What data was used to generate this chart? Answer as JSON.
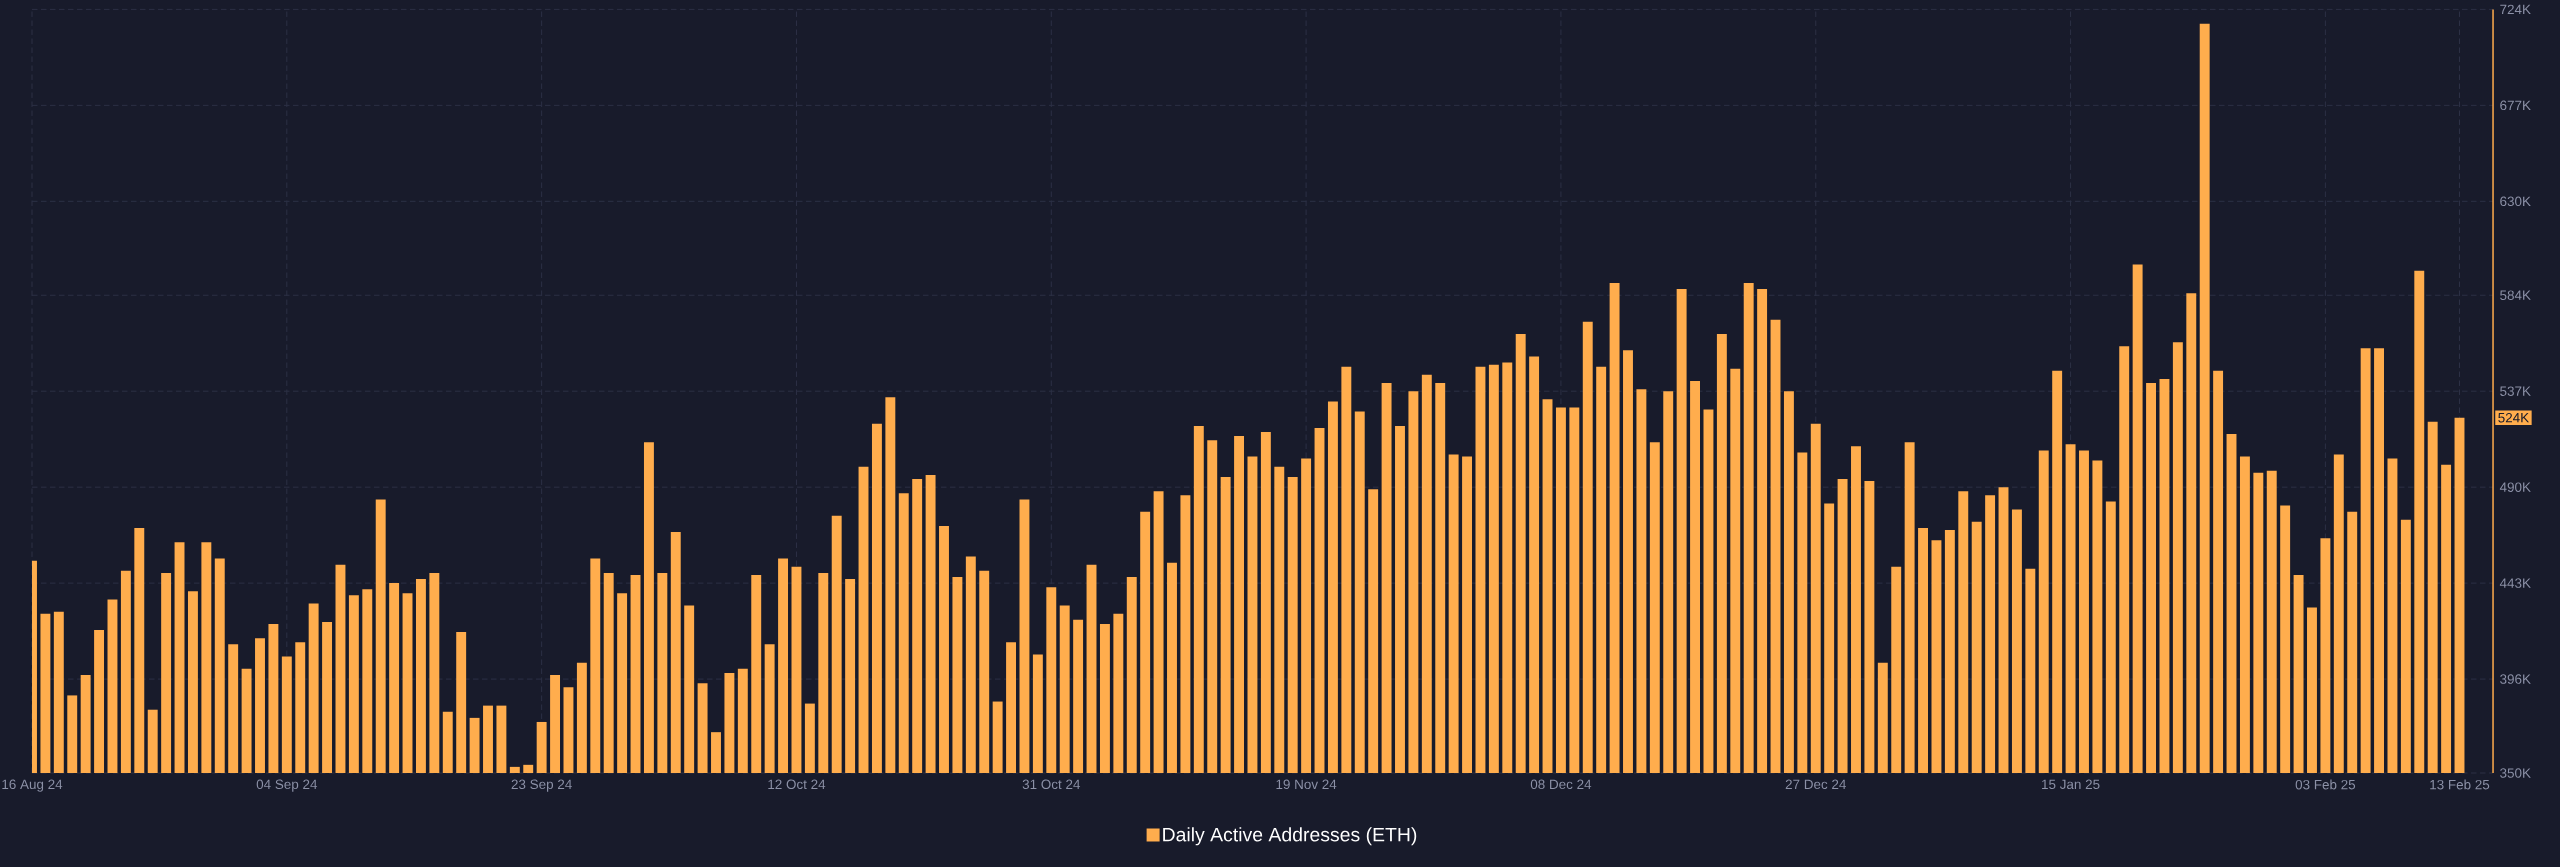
{
  "chart_data": {
    "type": "bar",
    "x": [
      "2024-08-16",
      "2024-08-17",
      "2024-08-18",
      "2024-08-19",
      "2024-08-20",
      "2024-08-21",
      "2024-08-22",
      "2024-08-23",
      "2024-08-24",
      "2024-08-25",
      "2024-08-26",
      "2024-08-27",
      "2024-08-28",
      "2024-08-29",
      "2024-08-30",
      "2024-08-31",
      "2024-09-01",
      "2024-09-02",
      "2024-09-03",
      "2024-09-04",
      "2024-09-05",
      "2024-09-06",
      "2024-09-07",
      "2024-09-08",
      "2024-09-09",
      "2024-09-10",
      "2024-09-11",
      "2024-09-12",
      "2024-09-13",
      "2024-09-14",
      "2024-09-15",
      "2024-09-16",
      "2024-09-17",
      "2024-09-18",
      "2024-09-19",
      "2024-09-20",
      "2024-09-21",
      "2024-09-22",
      "2024-09-23",
      "2024-09-24",
      "2024-09-25",
      "2024-09-26",
      "2024-09-27",
      "2024-09-28",
      "2024-09-29",
      "2024-09-30",
      "2024-10-01",
      "2024-10-02",
      "2024-10-03",
      "2024-10-04",
      "2024-10-05",
      "2024-10-06",
      "2024-10-07",
      "2024-10-08",
      "2024-10-09",
      "2024-10-10",
      "2024-10-11",
      "2024-10-12",
      "2024-10-13",
      "2024-10-14",
      "2024-10-15",
      "2024-10-16",
      "2024-10-17",
      "2024-10-18",
      "2024-10-19",
      "2024-10-20",
      "2024-10-21",
      "2024-10-22",
      "2024-10-23",
      "2024-10-24",
      "2024-10-25",
      "2024-10-26",
      "2024-10-27",
      "2024-10-28",
      "2024-10-29",
      "2024-10-30",
      "2024-10-31",
      "2024-11-01",
      "2024-11-02",
      "2024-11-03",
      "2024-11-04",
      "2024-11-05",
      "2024-11-06",
      "2024-11-07",
      "2024-11-08",
      "2024-11-09",
      "2024-11-10",
      "2024-11-11",
      "2024-11-12",
      "2024-11-13",
      "2024-11-14",
      "2024-11-15",
      "2024-11-16",
      "2024-11-17",
      "2024-11-18",
      "2024-11-19",
      "2024-11-20",
      "2024-11-21",
      "2024-11-22",
      "2024-11-23",
      "2024-11-24",
      "2024-11-25",
      "2024-11-26",
      "2024-11-27",
      "2024-11-28",
      "2024-11-29",
      "2024-11-30",
      "2024-12-01",
      "2024-12-02",
      "2024-12-03",
      "2024-12-04",
      "2024-12-05",
      "2024-12-06",
      "2024-12-07",
      "2024-12-08",
      "2024-12-09",
      "2024-12-10",
      "2024-12-11",
      "2024-12-12",
      "2024-12-13",
      "2024-12-14",
      "2024-12-15",
      "2024-12-16",
      "2024-12-17",
      "2024-12-18",
      "2024-12-19",
      "2024-12-20",
      "2024-12-21",
      "2024-12-22",
      "2024-12-23",
      "2024-12-24",
      "2024-12-25",
      "2024-12-26",
      "2024-12-27",
      "2024-12-28",
      "2024-12-29",
      "2024-12-30",
      "2024-12-31",
      "2025-01-01",
      "2025-01-02",
      "2025-01-03",
      "2025-01-04",
      "2025-01-05",
      "2025-01-06",
      "2025-01-07",
      "2025-01-08",
      "2025-01-09",
      "2025-01-10",
      "2025-01-11",
      "2025-01-12",
      "2025-01-13",
      "2025-01-14",
      "2025-01-15",
      "2025-01-16",
      "2025-01-17",
      "2025-01-18",
      "2025-01-19",
      "2025-01-20",
      "2025-01-21",
      "2025-01-22",
      "2025-01-23",
      "2025-01-24",
      "2025-01-25",
      "2025-01-26",
      "2025-01-27",
      "2025-01-28",
      "2025-01-29",
      "2025-01-30",
      "2025-01-31",
      "2025-02-01",
      "2025-02-02",
      "2025-02-03",
      "2025-02-04",
      "2025-02-05",
      "2025-02-06",
      "2025-02-07",
      "2025-02-08",
      "2025-02-09",
      "2025-02-10",
      "2025-02-11",
      "2025-02-12",
      "2025-02-13"
    ],
    "xlim": [
      "2024-08-16",
      "2025-02-15T12:00"
    ],
    "xticks": [
      {
        "value": "2024-08-16",
        "label": "16 Aug 24"
      },
      {
        "value": "2024-09-04",
        "label": "04 Sep 24"
      },
      {
        "value": "2024-09-23",
        "label": "23 Sep 24"
      },
      {
        "value": "2024-10-12",
        "label": "12 Oct 24"
      },
      {
        "value": "2024-10-31",
        "label": "31 Oct 24"
      },
      {
        "value": "2024-11-19",
        "label": "19 Nov 24"
      },
      {
        "value": "2024-12-08",
        "label": "08 Dec 24"
      },
      {
        "value": "2024-12-27",
        "label": "27 Dec 24"
      },
      {
        "value": "2025-01-15",
        "label": "15 Jan 25"
      },
      {
        "value": "2025-02-03",
        "label": "03 Feb 25"
      },
      {
        "value": "2025-02-13",
        "label": "13 Feb 25"
      }
    ],
    "ylim": [
      350000,
      724000
    ],
    "yticks": [
      {
        "value": 350000,
        "label": "350K"
      },
      {
        "value": 396000,
        "label": "396K"
      },
      {
        "value": 443000,
        "label": "443K"
      },
      {
        "value": 490000,
        "label": "490K"
      },
      {
        "value": 537000,
        "label": "537K"
      },
      {
        "value": 584000,
        "label": "584K"
      },
      {
        "value": 630000,
        "label": "630K"
      },
      {
        "value": 677000,
        "label": "677K"
      },
      {
        "value": 724000,
        "label": "724K"
      }
    ],
    "grid": true,
    "legend": "bottom",
    "annotations": [
      "524K"
    ],
    "series": [
      {
        "name": "Daily Active Addresses (ETH)",
        "color": "#ffad4d",
        "values": [
          454000,
          428000,
          429000,
          388000,
          398000,
          420000,
          435000,
          449000,
          470000,
          381000,
          448000,
          463000,
          439000,
          463000,
          455000,
          413000,
          401000,
          416000,
          423000,
          407000,
          414000,
          433000,
          424000,
          452000,
          437000,
          440000,
          484000,
          443000,
          438000,
          445000,
          448000,
          380000,
          419000,
          377000,
          383000,
          383000,
          353000,
          354000,
          375000,
          398000,
          392000,
          404000,
          455000,
          448000,
          438000,
          447000,
          512000,
          448000,
          468000,
          432000,
          394000,
          370000,
          399000,
          401000,
          447000,
          413000,
          455000,
          451000,
          384000,
          448000,
          476000,
          445000,
          500000,
          521000,
          534000,
          487000,
          494000,
          496000,
          471000,
          446000,
          456000,
          449000,
          385000,
          414000,
          484000,
          408000,
          441000,
          432000,
          425000,
          452000,
          423000,
          428000,
          446000,
          478000,
          488000,
          453000,
          486000,
          520000,
          513000,
          495000,
          515000,
          505000,
          517000,
          500000,
          495000,
          504000,
          519000,
          532000,
          549000,
          527000,
          489000,
          541000,
          520000,
          537000,
          545000,
          541000,
          506000,
          505000,
          549000,
          550000,
          551000,
          565000,
          554000,
          533000,
          529000,
          529000,
          571000,
          549000,
          590000,
          557000,
          538000,
          512000,
          537000,
          587000,
          542000,
          528000,
          565000,
          548000,
          590000,
          587000,
          572000,
          537000,
          507000,
          521000,
          482000,
          494000,
          510000,
          493000,
          404000,
          451000,
          512000,
          470000,
          464000,
          469000,
          488000,
          473000,
          486000,
          490000,
          479000,
          450000,
          508000,
          547000,
          511000,
          508000,
          503000,
          483000,
          559000,
          599000,
          541000,
          543000,
          561000,
          585000,
          717000,
          547000,
          516000,
          505000,
          497000,
          498000,
          481000,
          447000,
          431000,
          465000,
          506000,
          478000,
          558000,
          558000,
          504000,
          474000,
          596000,
          522000,
          501000,
          524000
        ]
      }
    ]
  }
}
